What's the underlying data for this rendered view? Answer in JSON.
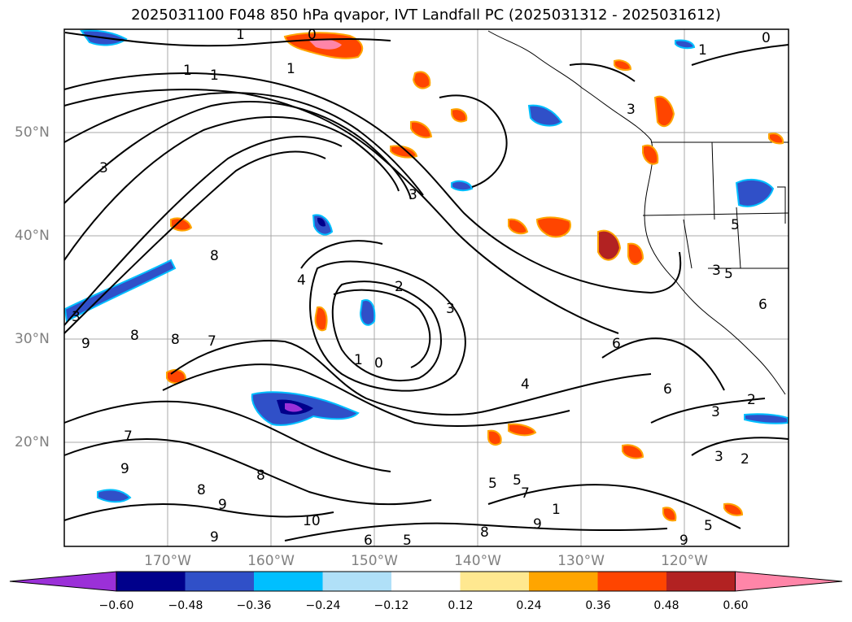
{
  "title": "2025031100 F048 850 hPa qvapor, IVT Landfall PC (2025031312 - 2025031612)",
  "lat_labels": [
    "50°N",
    "40°N",
    "30°N",
    "20°N"
  ],
  "lon_labels": [
    "170°W",
    "160°W",
    "150°W",
    "140°W",
    "130°W",
    "120°W"
  ],
  "colorbar": {
    "colors": [
      "#9b30d8",
      "#00008b",
      "#3050c8",
      "#00bfff",
      "#b0e0f8",
      "#ffffff",
      "#ffe890",
      "#ffa500",
      "#ff4500",
      "#b22222",
      "#ff85a8"
    ],
    "ticks": [
      "−0.60",
      "−0.48",
      "−0.36",
      "−0.24",
      "−0.12",
      "0.12",
      "0.24",
      "0.36",
      "0.48",
      "0.60"
    ]
  },
  "contour_labels": [
    "1",
    "1",
    "1",
    "1",
    "0",
    "1",
    "3",
    "3",
    "3",
    "8",
    "4",
    "2",
    "3",
    "1",
    "0",
    "6",
    "6",
    "4",
    "3",
    "2",
    "3",
    "2",
    "8",
    "7",
    "9",
    "8",
    "8",
    "9",
    "7",
    "9",
    "8",
    "9",
    "10",
    "6",
    "5",
    "8",
    "9",
    "5",
    "5",
    "7",
    "1",
    "9",
    "3",
    "5",
    "5",
    "6",
    "5",
    "3",
    "0"
  ]
}
